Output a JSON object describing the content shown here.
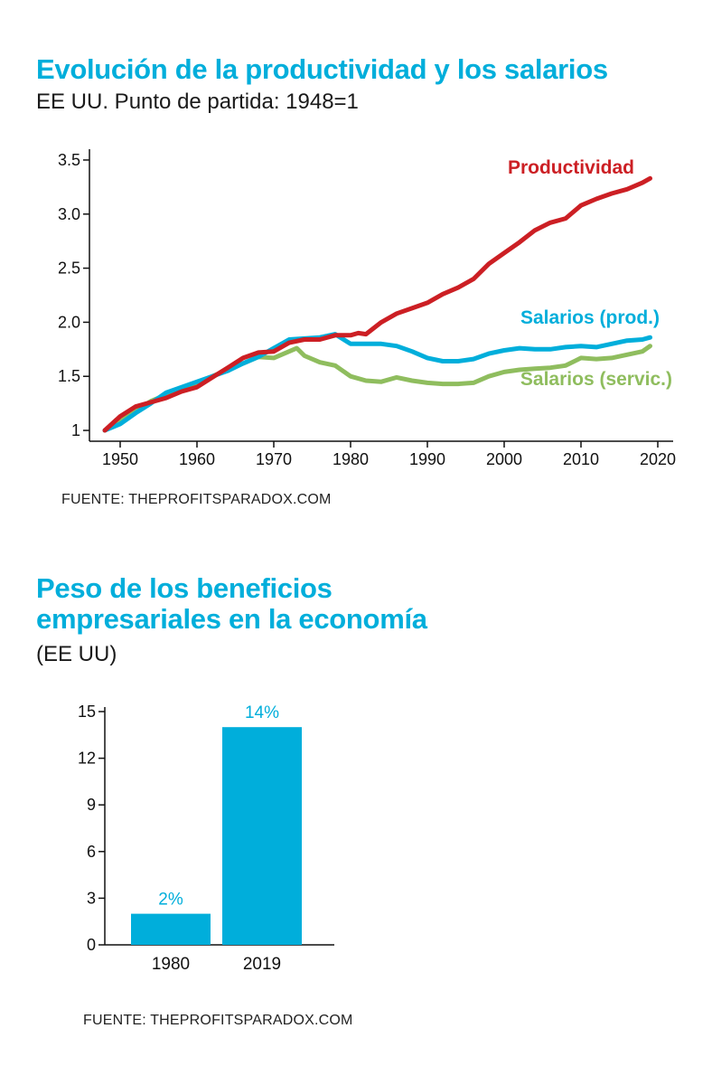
{
  "colors": {
    "accent": "#00aedb",
    "productividad": "#cc1f24",
    "salarios_prod": "#00aedb",
    "salarios_servic": "#8fbd5e",
    "axis": "#111111"
  },
  "chart_data": [
    {
      "type": "line",
      "title": "Evolución de la productividad y los salarios",
      "subtitle": "EE UU. Punto de partida: 1948=1",
      "source": "FUENTE: THEPROFITSPARADOX.COM",
      "xlim": [
        1946,
        2022
      ],
      "ylim": [
        0.9,
        3.6
      ],
      "xticks": [
        1950,
        1960,
        1970,
        1980,
        1990,
        2000,
        2010,
        2020
      ],
      "yticks": [
        1,
        1.5,
        2.0,
        2.5,
        3.0,
        3.5
      ],
      "ytick_labels": [
        "1",
        "1.5",
        "2.0",
        "2.5",
        "3.0",
        "3.5"
      ],
      "grid": false,
      "legend": "inline-labels",
      "series": [
        {
          "name": "Productividad",
          "color": "#cc1f24",
          "x": [
            1948,
            1950,
            1952,
            1954,
            1956,
            1958,
            1960,
            1962,
            1964,
            1966,
            1968,
            1970,
            1972,
            1974,
            1976,
            1978,
            1980,
            1981,
            1982,
            1984,
            1986,
            1988,
            1990,
            1992,
            1994,
            1996,
            1998,
            2000,
            2002,
            2004,
            2006,
            2008,
            2010,
            2012,
            2014,
            2016,
            2018,
            2019
          ],
          "y": [
            1.0,
            1.13,
            1.22,
            1.26,
            1.3,
            1.36,
            1.4,
            1.49,
            1.58,
            1.67,
            1.72,
            1.73,
            1.81,
            1.84,
            1.84,
            1.88,
            1.88,
            1.9,
            1.89,
            2.0,
            2.08,
            2.13,
            2.18,
            2.26,
            2.32,
            2.4,
            2.54,
            2.64,
            2.74,
            2.85,
            2.92,
            2.96,
            3.08,
            3.14,
            3.19,
            3.23,
            3.29,
            3.33
          ]
        },
        {
          "name": "Salarios (prod.)",
          "color": "#00aedb",
          "x": [
            1948,
            1950,
            1952,
            1954,
            1956,
            1958,
            1960,
            1962,
            1964,
            1966,
            1968,
            1970,
            1972,
            1974,
            1976,
            1978,
            1980,
            1982,
            1984,
            1986,
            1988,
            1990,
            1992,
            1994,
            1996,
            1998,
            2000,
            2002,
            2004,
            2006,
            2008,
            2010,
            2012,
            2014,
            2016,
            2018,
            2019
          ],
          "y": [
            1.0,
            1.06,
            1.16,
            1.25,
            1.35,
            1.4,
            1.45,
            1.5,
            1.55,
            1.62,
            1.68,
            1.76,
            1.84,
            1.85,
            1.86,
            1.89,
            1.8,
            1.8,
            1.8,
            1.78,
            1.73,
            1.67,
            1.64,
            1.64,
            1.66,
            1.71,
            1.74,
            1.76,
            1.75,
            1.75,
            1.77,
            1.78,
            1.77,
            1.8,
            1.83,
            1.84,
            1.86
          ]
        },
        {
          "name": "Salarios (servic.)",
          "color": "#8fbd5e",
          "x": [
            1948,
            1950,
            1952,
            1954,
            1956,
            1958,
            1960,
            1962,
            1964,
            1966,
            1968,
            1970,
            1972,
            1973,
            1974,
            1976,
            1978,
            1980,
            1982,
            1984,
            1986,
            1988,
            1990,
            1992,
            1994,
            1996,
            1998,
            2000,
            2002,
            2004,
            2006,
            2008,
            2010,
            2012,
            2014,
            2016,
            2018,
            2019
          ],
          "y": [
            1.0,
            1.08,
            1.18,
            1.27,
            1.33,
            1.38,
            1.44,
            1.5,
            1.56,
            1.62,
            1.68,
            1.67,
            1.73,
            1.76,
            1.69,
            1.63,
            1.6,
            1.5,
            1.46,
            1.45,
            1.49,
            1.46,
            1.44,
            1.43,
            1.43,
            1.44,
            1.5,
            1.54,
            1.56,
            1.57,
            1.58,
            1.6,
            1.67,
            1.66,
            1.67,
            1.7,
            1.73,
            1.78
          ]
        }
      ]
    },
    {
      "type": "bar",
      "title": "Peso de los beneficios empresariales en la economía",
      "title_line1": "Peso de los beneficios",
      "title_line2": "empresariales en la economía",
      "subtitle": "(EE UU)",
      "source": "FUENTE: THEPROFITSPARADOX.COM",
      "categories": [
        "1980",
        "2019"
      ],
      "values": [
        2,
        14
      ],
      "value_labels": [
        "2%",
        "14%"
      ],
      "ylim": [
        0,
        15
      ],
      "yticks": [
        0,
        3,
        6,
        9,
        12,
        15
      ],
      "color": "#00aedb",
      "grid": false
    }
  ]
}
